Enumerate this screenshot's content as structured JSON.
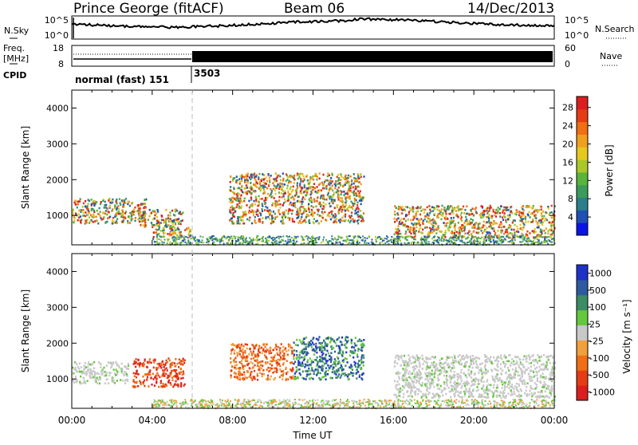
{
  "header": {
    "station": "Prince George (fitACF)",
    "beam": "Beam 06",
    "date": "14/Dec/2013"
  },
  "noise_panel": {
    "left_label": "N.Sky",
    "right_label": "N.Search",
    "left_ticks": [
      "10^5",
      "10^0"
    ],
    "right_ticks": [
      "10^5",
      "10^0"
    ]
  },
  "freq_panel": {
    "left_label_top": "Freq.",
    "left_label_bottom": "[MHz]",
    "right_label": "Nave",
    "left_ticks": [
      "18",
      "8"
    ],
    "right_ticks": [
      "60",
      "0"
    ]
  },
  "cpid_panel": {
    "label": "CPID",
    "segments": [
      "normal (fast) 151",
      "3503"
    ]
  },
  "chart_data": [
    {
      "type": "heatmap",
      "title": "",
      "ylabel": "Slant Range [km]",
      "xlabel": "",
      "x_range": [
        "00:00",
        "00:00"
      ],
      "ylim": [
        180,
        4500
      ],
      "y_ticks": [
        1000,
        2000,
        3000,
        4000
      ],
      "colorbar": {
        "label": "Power [dB]",
        "ticks": [
          "4",
          "8",
          "12",
          "16",
          "20",
          "24",
          "28"
        ],
        "colors": [
          "#0a14e6",
          "#1e50b4",
          "#2d7d8c",
          "#3c9b5a",
          "#5ab43c",
          "#aac828",
          "#e6c81e",
          "#f0a01e",
          "#f06e14",
          "#e63c14",
          "#dc1e1e"
        ]
      },
      "regions": [
        {
          "t": [
            0.0,
            3.7
          ],
          "r": [
            800,
            1500
          ],
          "value": "mid-high"
        },
        {
          "t": [
            3.2,
            5.5
          ],
          "r": [
            700,
            1200
          ],
          "value": "high"
        },
        {
          "t": [
            4.0,
            5.9
          ],
          "r": [
            400,
            700
          ],
          "value": "high"
        },
        {
          "t": [
            7.8,
            14.5
          ],
          "r": [
            800,
            2200
          ],
          "value": "high"
        },
        {
          "t": [
            16.0,
            24.0
          ],
          "r": [
            400,
            1300
          ],
          "value": "high"
        }
      ]
    },
    {
      "type": "heatmap",
      "title": "",
      "ylabel": "Slant Range [km]",
      "xlabel": "Time UT",
      "x_ticks": [
        "00:00",
        "04:00",
        "08:00",
        "12:00",
        "16:00",
        "20:00",
        "00:00"
      ],
      "ylim": [
        180,
        4500
      ],
      "y_ticks": [
        1000,
        2000,
        3000,
        4000
      ],
      "colorbar": {
        "label": "Velocity [m s⁻¹]",
        "ticks": [
          "1000",
          "500",
          "100",
          "25",
          "-25",
          "-100",
          "-500",
          "-1000"
        ],
        "colors": [
          "#1e32c8",
          "#2d5aa0",
          "#3c8c64",
          "#64c83c",
          "#c8c8c8",
          "#f0a03c",
          "#f06e14",
          "#e63c14",
          "#dc1e1e"
        ]
      },
      "regions": [
        {
          "t": [
            0.0,
            2.8
          ],
          "r": [
            900,
            1500
          ],
          "value": "ground scatter"
        },
        {
          "t": [
            3.0,
            5.6
          ],
          "r": [
            800,
            1600
          ],
          "value": "-500 to -1000"
        },
        {
          "t": [
            7.8,
            11.0
          ],
          "r": [
            1000,
            2000
          ],
          "value": "-100 to -500"
        },
        {
          "t": [
            11.0,
            14.5
          ],
          "r": [
            1000,
            2200
          ],
          "value": "100 to 500"
        },
        {
          "t": [
            16.0,
            24.0
          ],
          "r": [
            500,
            1700
          ],
          "value": "ground scatter"
        }
      ]
    }
  ]
}
